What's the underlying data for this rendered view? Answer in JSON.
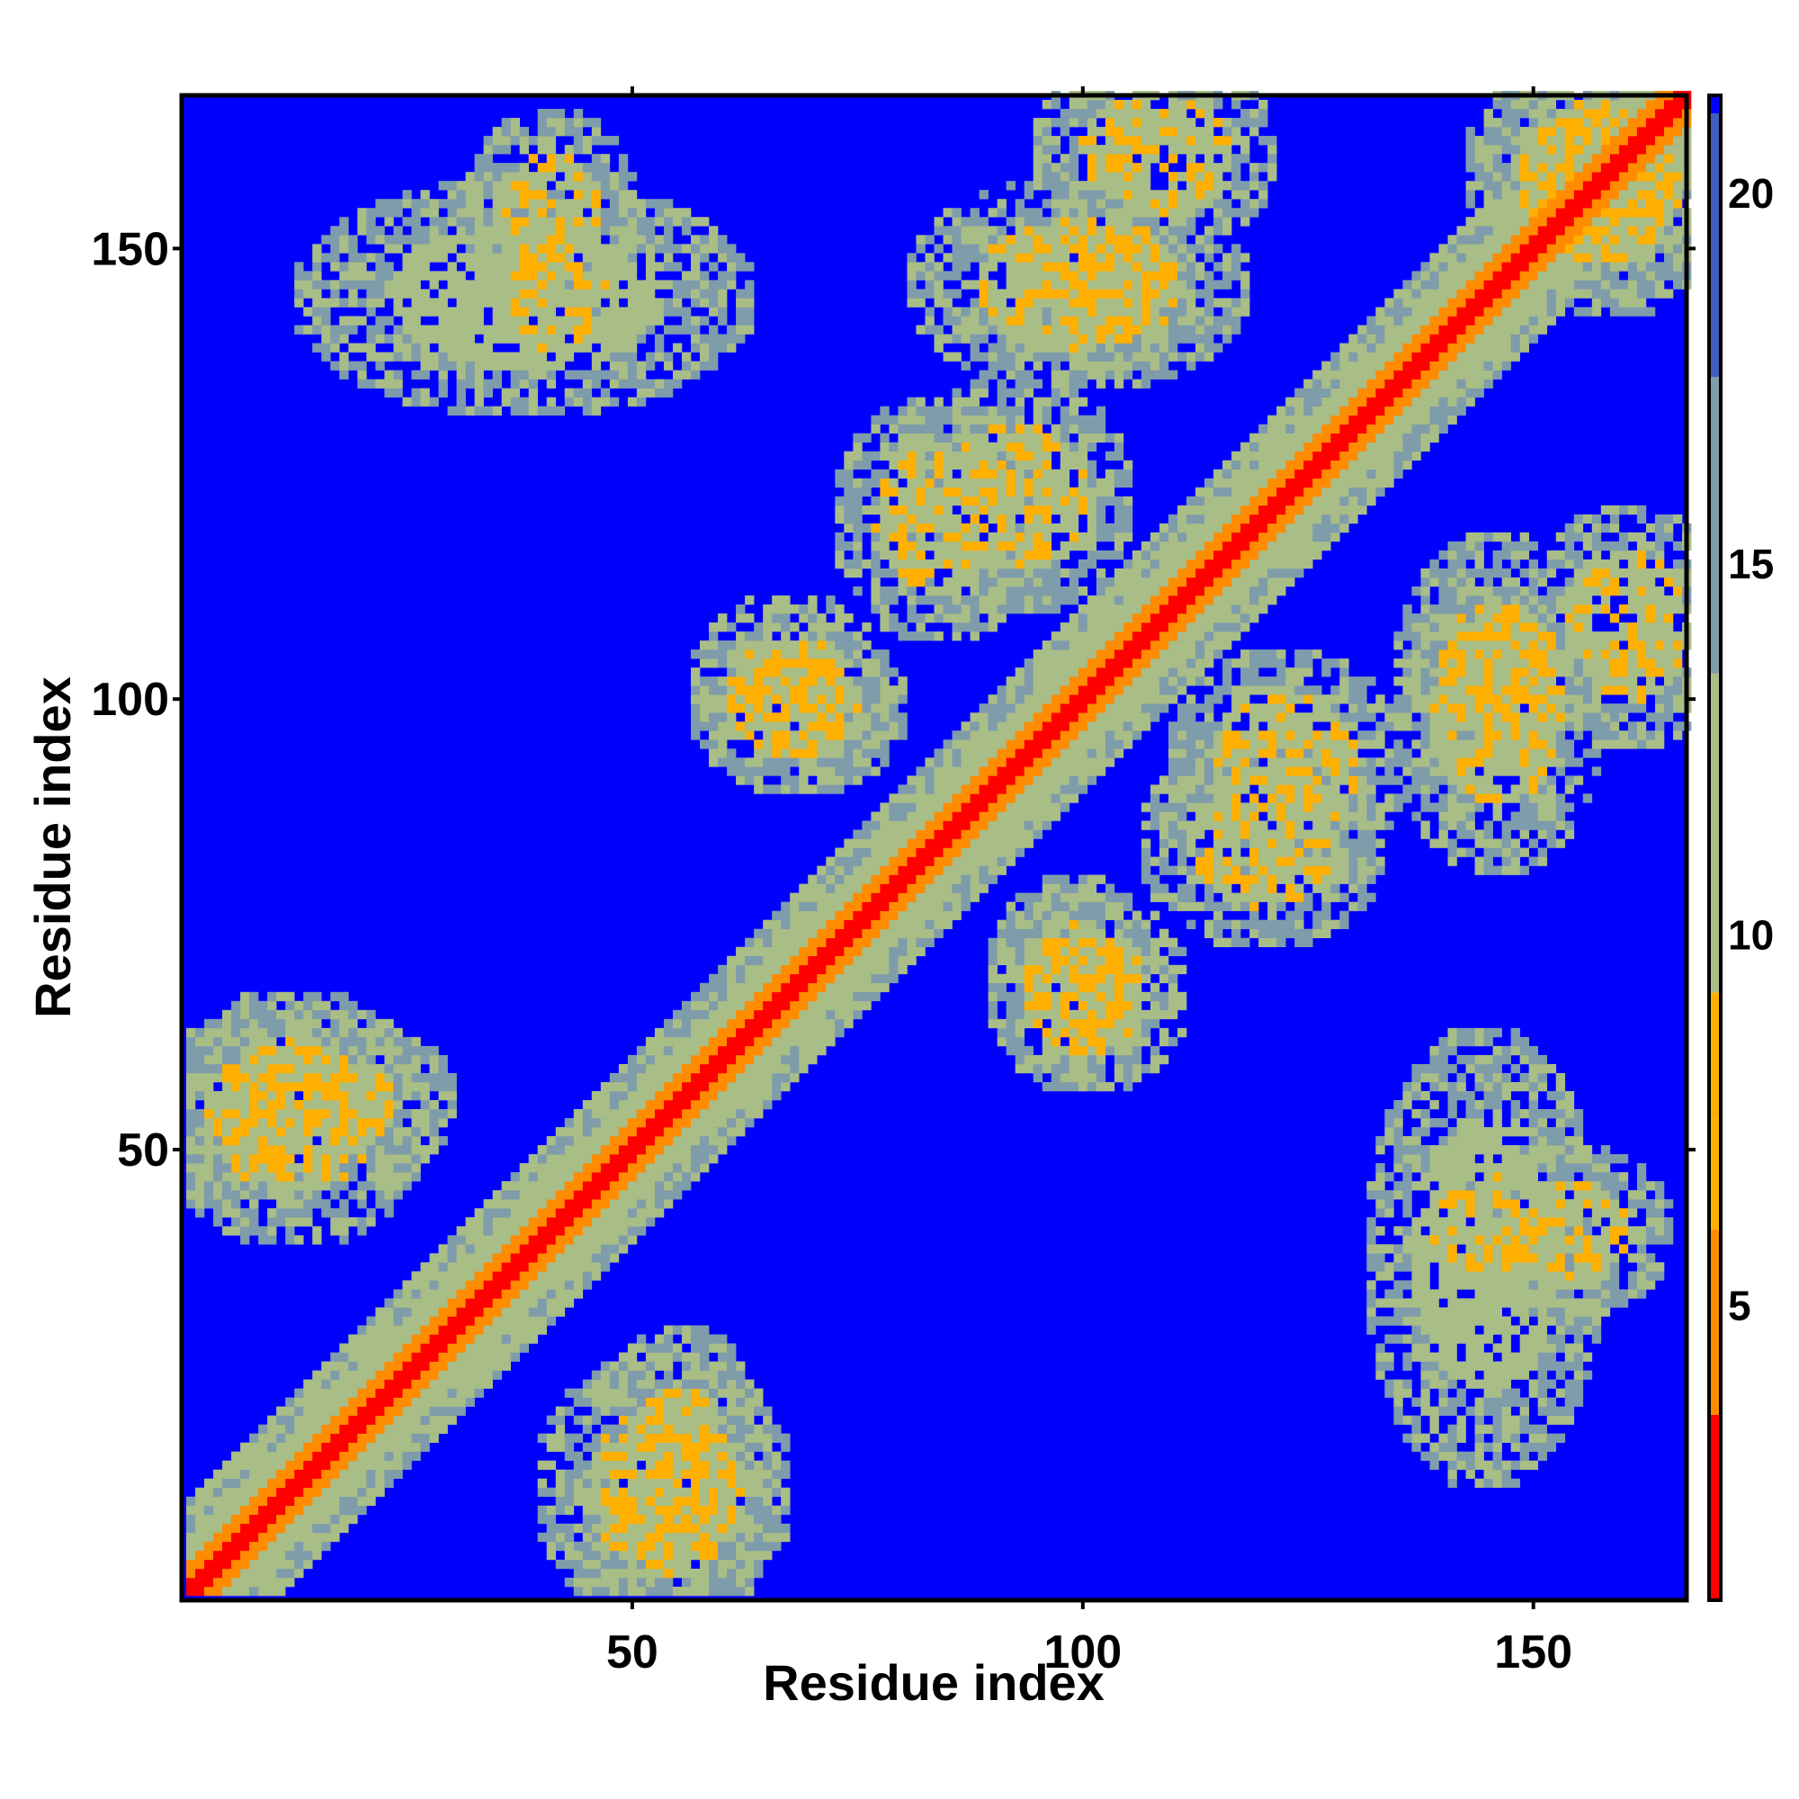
{
  "chart_data": {
    "type": "heatmap",
    "title": "",
    "xlabel": "Residue index",
    "ylabel": "Residue index",
    "n_residues": 167,
    "xlim": [
      1,
      167
    ],
    "ylim": [
      1,
      167
    ],
    "x_ticks": [
      50,
      100,
      150
    ],
    "y_ticks": [
      50,
      100,
      150
    ],
    "colorbar": {
      "range": [
        1,
        21.3
      ],
      "ticks": [
        5,
        10,
        15,
        20
      ],
      "colors": {
        "very_close": "#ff0000",
        "close": "#ff8c00",
        "mid_close": "#ffb000",
        "medium": "#a9bd86",
        "medium_far": "#7f9cab",
        "far": "#0000ff"
      }
    },
    "diagonal": "self-contact band along x = y (distance ≈ 0 to 6)",
    "contact_regions": [
      {
        "x": [
          37,
          45
        ],
        "y": [
          147,
          160
        ],
        "level": "close"
      },
      {
        "x": [
          86,
          113
        ],
        "y": [
          140,
          152
        ],
        "level": "close"
      },
      {
        "x": [
          100,
          116
        ],
        "y": [
          155,
          166
        ],
        "level": "close"
      },
      {
        "x": [
          62,
          75
        ],
        "y": [
          95,
          103
        ],
        "level": "close"
      },
      {
        "x": [
          85,
          100
        ],
        "y": [
          115,
          130
        ],
        "level": "close"
      },
      {
        "x": [
          142,
          152
        ],
        "y": [
          98,
          108
        ],
        "level": "close"
      },
      {
        "x": [
          95,
          106
        ],
        "y": [
          62,
          73
        ],
        "level": "close"
      },
      {
        "x": [
          112,
          128
        ],
        "y": [
          78,
          90
        ],
        "level": "close"
      },
      {
        "x": [
          1,
          25
        ],
        "y": [
          50,
          60
        ],
        "level": "close"
      },
      {
        "x": [
          140,
          150
        ],
        "y": [
          38,
          45
        ],
        "level": "close"
      },
      {
        "x": [
          45,
          62
        ],
        "y": [
          3,
          22
        ],
        "level": "close"
      },
      {
        "x": [
          137,
          152
        ],
        "y": [
          18,
          58
        ],
        "level": "medium"
      },
      {
        "x": [
          148,
          166
        ],
        "y": [
          150,
          166
        ],
        "level": "close"
      }
    ]
  }
}
